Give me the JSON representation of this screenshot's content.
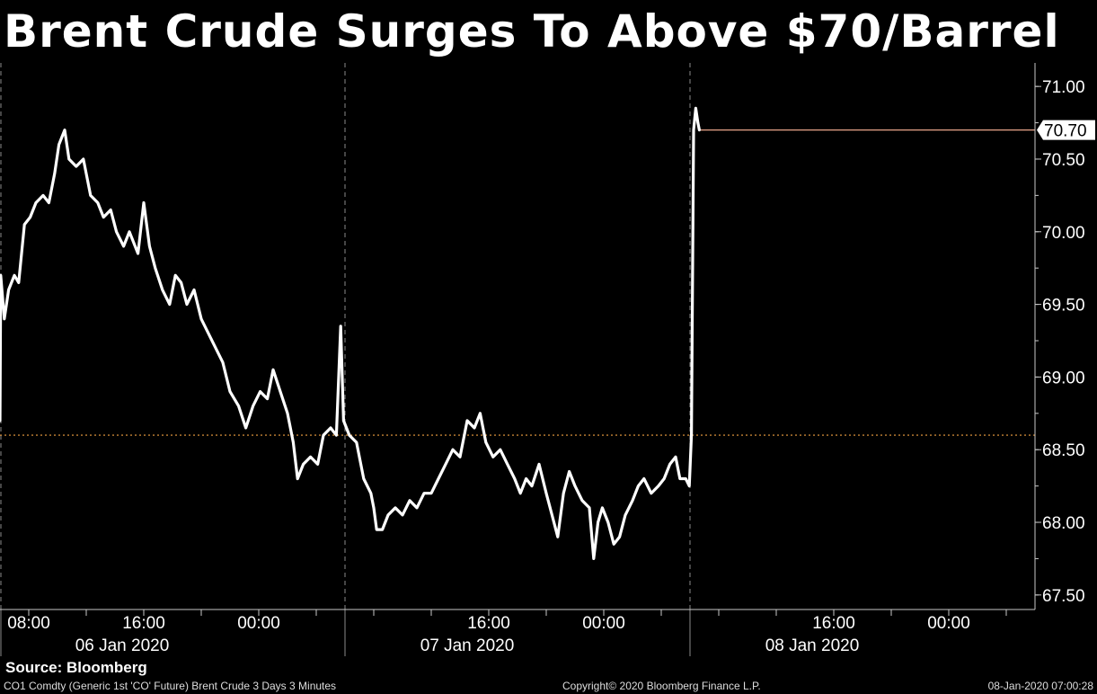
{
  "header": {
    "title": "Brent Crude Surges To Above $70/Barrel"
  },
  "source": "Source: Bloomberg",
  "footer": {
    "description": "CO1 Comdty (Generic 1st 'CO' Future) Brent Crude 3 Days 3 Minutes",
    "copyright": "Copyright© 2020 Bloomberg Finance L.P.",
    "timestamp": "08-Jan-2020 07:00:28"
  },
  "colors": {
    "background": "#000000",
    "line": "#ffffff",
    "last_price": "#e8a48a",
    "reference": "#f0a040",
    "axis": "#c8c8c8"
  },
  "chart_data": {
    "type": "line",
    "title": "Brent Crude Surges To Above $70/Barrel",
    "xlabel": "",
    "ylabel": "",
    "x_unit": "hours",
    "xlim": [
      6,
      78
    ],
    "ylim": [
      67.4,
      71.1
    ],
    "y_ticks": [
      67.5,
      68.0,
      68.5,
      69.0,
      69.5,
      70.0,
      70.5,
      71.0
    ],
    "y_tick_labels": [
      "67.50",
      "68.00",
      "68.50",
      "69.00",
      "69.50",
      "70.00",
      "70.50",
      "71.00"
    ],
    "x_tick_labels": [
      {
        "x": 8,
        "label": "08:00"
      },
      {
        "x": 16,
        "label": "16:00"
      },
      {
        "x": 24,
        "label": "00:00"
      },
      {
        "x": 40,
        "label": "16:00"
      },
      {
        "x": 48,
        "label": "00:00"
      },
      {
        "x": 64,
        "label": "16:00"
      },
      {
        "x": 72,
        "label": "00:00"
      }
    ],
    "day_labels": [
      {
        "x": 14.5,
        "label": "06 Jan 2020"
      },
      {
        "x": 38.5,
        "label": "07 Jan 2020"
      },
      {
        "x": 62.5,
        "label": "08 Jan 2020"
      }
    ],
    "day_separators": [
      30,
      54
    ],
    "last_price": {
      "value": 70.7,
      "label": "70.70"
    },
    "reference_line": 68.6,
    "legend": "none",
    "grid": false,
    "series": [
      {
        "points": [
          [
            6.0,
            68.7
          ],
          [
            6.05,
            69.7
          ],
          [
            6.3,
            69.4
          ],
          [
            6.6,
            69.6
          ],
          [
            7.0,
            69.7
          ],
          [
            7.3,
            69.65
          ],
          [
            7.7,
            70.05
          ],
          [
            8.1,
            70.1
          ],
          [
            8.5,
            70.2
          ],
          [
            9.0,
            70.25
          ],
          [
            9.4,
            70.2
          ],
          [
            9.8,
            70.4
          ],
          [
            10.1,
            70.6
          ],
          [
            10.5,
            70.7
          ],
          [
            10.8,
            70.5
          ],
          [
            11.3,
            70.45
          ],
          [
            11.8,
            70.5
          ],
          [
            12.3,
            70.25
          ],
          [
            12.8,
            70.2
          ],
          [
            13.2,
            70.1
          ],
          [
            13.7,
            70.15
          ],
          [
            14.1,
            70.0
          ],
          [
            14.6,
            69.9
          ],
          [
            15.0,
            70.0
          ],
          [
            15.6,
            69.85
          ],
          [
            16.0,
            70.2
          ],
          [
            16.4,
            69.9
          ],
          [
            16.8,
            69.75
          ],
          [
            17.3,
            69.6
          ],
          [
            17.8,
            69.5
          ],
          [
            18.2,
            69.7
          ],
          [
            18.6,
            69.65
          ],
          [
            19.0,
            69.5
          ],
          [
            19.5,
            69.6
          ],
          [
            20.0,
            69.4
          ],
          [
            20.5,
            69.3
          ],
          [
            21.0,
            69.2
          ],
          [
            21.5,
            69.1
          ],
          [
            22.0,
            68.9
          ],
          [
            22.6,
            68.8
          ],
          [
            23.1,
            68.65
          ],
          [
            23.6,
            68.8
          ],
          [
            24.1,
            68.9
          ],
          [
            24.6,
            68.85
          ],
          [
            25.0,
            69.05
          ],
          [
            25.5,
            68.9
          ],
          [
            26.0,
            68.75
          ],
          [
            26.4,
            68.55
          ],
          [
            26.7,
            68.3
          ],
          [
            27.1,
            68.4
          ],
          [
            27.6,
            68.45
          ],
          [
            28.1,
            68.4
          ],
          [
            28.5,
            68.6
          ],
          [
            29.0,
            68.65
          ],
          [
            29.4,
            68.6
          ],
          [
            29.7,
            69.35
          ],
          [
            29.9,
            68.7
          ],
          [
            30.3,
            68.6
          ],
          [
            30.8,
            68.55
          ],
          [
            31.3,
            68.3
          ],
          [
            31.8,
            68.2
          ],
          [
            32.0,
            68.1
          ],
          [
            32.2,
            67.95
          ],
          [
            32.6,
            67.95
          ],
          [
            33.0,
            68.05
          ],
          [
            33.5,
            68.1
          ],
          [
            34.0,
            68.05
          ],
          [
            34.5,
            68.15
          ],
          [
            35.0,
            68.1
          ],
          [
            35.5,
            68.2
          ],
          [
            36.0,
            68.2
          ],
          [
            36.5,
            68.3
          ],
          [
            37.0,
            68.4
          ],
          [
            37.5,
            68.5
          ],
          [
            38.0,
            68.45
          ],
          [
            38.5,
            68.7
          ],
          [
            39.0,
            68.65
          ],
          [
            39.4,
            68.75
          ],
          [
            39.8,
            68.55
          ],
          [
            40.3,
            68.45
          ],
          [
            40.8,
            68.5
          ],
          [
            41.3,
            68.4
          ],
          [
            41.8,
            68.3
          ],
          [
            42.2,
            68.2
          ],
          [
            42.6,
            68.3
          ],
          [
            43.0,
            68.25
          ],
          [
            43.5,
            68.4
          ],
          [
            44.0,
            68.2
          ],
          [
            44.4,
            68.05
          ],
          [
            44.8,
            67.9
          ],
          [
            45.2,
            68.2
          ],
          [
            45.6,
            68.35
          ],
          [
            46.0,
            68.25
          ],
          [
            46.5,
            68.15
          ],
          [
            47.0,
            68.1
          ],
          [
            47.3,
            67.75
          ],
          [
            47.6,
            68.0
          ],
          [
            47.9,
            68.1
          ],
          [
            48.3,
            68.0
          ],
          [
            48.7,
            67.85
          ],
          [
            49.1,
            67.9
          ],
          [
            49.5,
            68.05
          ],
          [
            50.0,
            68.15
          ],
          [
            50.4,
            68.25
          ],
          [
            50.8,
            68.3
          ],
          [
            51.3,
            68.2
          ],
          [
            51.8,
            68.25
          ],
          [
            52.2,
            68.3
          ],
          [
            52.6,
            68.4
          ],
          [
            53.0,
            68.45
          ],
          [
            53.3,
            68.3
          ],
          [
            53.7,
            68.3
          ],
          [
            53.95,
            68.25
          ],
          [
            54.1,
            68.6
          ],
          [
            54.25,
            70.7
          ],
          [
            54.4,
            70.85
          ],
          [
            54.55,
            70.75
          ],
          [
            54.65,
            70.7
          ]
        ]
      }
    ]
  }
}
